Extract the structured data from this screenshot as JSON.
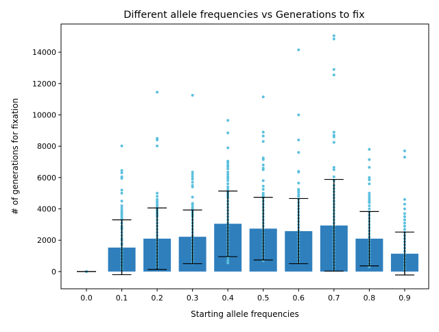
{
  "chart_data": {
    "type": "bar",
    "title": "Different allele frequencies vs Generations to fix",
    "xlabel": "Starting allele frequencies",
    "ylabel": "# of generations for fixation",
    "categories": [
      "0.0",
      "0.1",
      "0.2",
      "0.3",
      "0.4",
      "0.5",
      "0.6",
      "0.7",
      "0.8",
      "0.9"
    ],
    "ylim": [
      -1100,
      15800
    ],
    "yticks": [
      0,
      2000,
      4000,
      6000,
      8000,
      10000,
      12000,
      14000
    ],
    "grid": false,
    "colors": {
      "bar": "#2f7fbd",
      "points": "#5bc0de",
      "error": "#000000"
    },
    "series": [
      {
        "kind": "bar",
        "values": [
          0,
          1530,
          2100,
          2220,
          3050,
          2740,
          2580,
          2940,
          2100,
          1140
        ]
      },
      {
        "kind": "error",
        "lower": [
          0,
          -200,
          130,
          500,
          950,
          740,
          500,
          30,
          360,
          -220
        ],
        "upper": [
          0,
          3300,
          4060,
          3930,
          5140,
          4740,
          4660,
          5880,
          3830,
          2520
        ]
      },
      {
        "kind": "scatter",
        "points": [
          [
            0,
            [
              0,
              0,
              0
            ]
          ],
          [
            1,
            [
              8020,
              6450,
              6300,
              6050,
              5950,
              5200,
              5000,
              4500,
              4200,
              4050,
              3900,
              3800,
              3700,
              3600,
              3500,
              3400,
              3300,
              3100,
              2900,
              2800,
              2700,
              2500,
              2300,
              2100,
              2000,
              1800,
              1700,
              1500,
              1300,
              1100,
              900,
              700,
              500,
              300,
              150
            ]
          ],
          [
            2,
            [
              11450,
              8500,
              8400,
              8020,
              5000,
              4800,
              4600,
              4500,
              4400,
              4300,
              4200,
              4100,
              4000,
              3900,
              3800,
              3700,
              3600,
              3500,
              3300,
              3100,
              2900,
              2700,
              2500,
              2300,
              2100,
              1900,
              1700,
              1500,
              1300,
              1100,
              900,
              700,
              500,
              300
            ]
          ],
          [
            3,
            [
              11250,
              6350,
              6200,
              6050,
              5900,
              5700,
              5500,
              5400,
              4750,
              4350,
              4250,
              4100,
              4000,
              3900,
              3800,
              3700,
              3600,
              3500,
              3300,
              3100,
              2900,
              2700,
              2500,
              2300,
              2100,
              1900,
              1700,
              1500,
              1300,
              1100,
              900,
              700,
              550
            ]
          ],
          [
            4,
            [
              9650,
              8850,
              7900,
              7050,
              6950,
              6800,
              6700,
              6550,
              6350,
              6200,
              6050,
              5950,
              5800,
              5600,
              5400,
              5250,
              5100,
              5000,
              4900,
              4800,
              4700,
              4500,
              4300,
              4100,
              3900,
              3700,
              3500,
              3300,
              3100,
              2900,
              2700,
              2500,
              2300,
              2100,
              1900,
              1700,
              1500,
              1300,
              1100,
              900,
              700,
              550
            ]
          ],
          [
            5,
            [
              11150,
              8900,
              8650,
              8300,
              7250,
              7150,
              6800,
              6600,
              6500,
              5800,
              5450,
              5250,
              5000,
              4900,
              4800,
              4700,
              4500,
              4300,
              4100,
              3900,
              3700,
              3500,
              3300,
              3100,
              2900,
              2700,
              2500,
              2300,
              2100,
              1900,
              1700,
              1500,
              1300,
              1100,
              900,
              700
            ]
          ],
          [
            6,
            [
              14150,
              10000,
              8400,
              7600,
              6400,
              6350,
              5650,
              5250,
              5150,
              5050,
              4900,
              4800,
              4600,
              4400,
              4200,
              4000,
              3800,
              3600,
              3400,
              3200,
              3000,
              2800,
              2600,
              2400,
              2200,
              2000,
              1800,
              1600,
              1400,
              1200,
              1000,
              800,
              600
            ]
          ],
          [
            7,
            [
              15050,
              14850,
              12900,
              12550,
              8900,
              8700,
              8600,
              8250,
              6650,
              6500,
              6050,
              5800,
              5500,
              5300,
              5100,
              4900,
              4700,
              4500,
              4300,
              4100,
              3900,
              3700,
              3500,
              3300,
              3100,
              2900,
              2700,
              2500,
              2300,
              2100,
              1900,
              1700,
              1500,
              1300,
              1100,
              900,
              700,
              500,
              300,
              100
            ]
          ],
          [
            8,
            [
              7800,
              7150,
              6650,
              6000,
              5850,
              5600,
              5000,
              4850,
              4700,
              4600,
              4500,
              4400,
              4200,
              4000,
              3800,
              3600,
              3400,
              3200,
              3000,
              2800,
              2600,
              2400,
              2200,
              2000,
              1800,
              1600,
              1400,
              1200,
              1000,
              800,
              600,
              400,
              300
            ]
          ],
          [
            9,
            [
              7700,
              7300,
              4600,
              4300,
              4000,
              3700,
              3500,
              3300,
              3100,
              2900,
              2700,
              2500,
              2300,
              2100,
              1900,
              1700,
              1500,
              1300,
              1100,
              900,
              700,
              500,
              300,
              150
            ]
          ]
        ]
      }
    ]
  }
}
